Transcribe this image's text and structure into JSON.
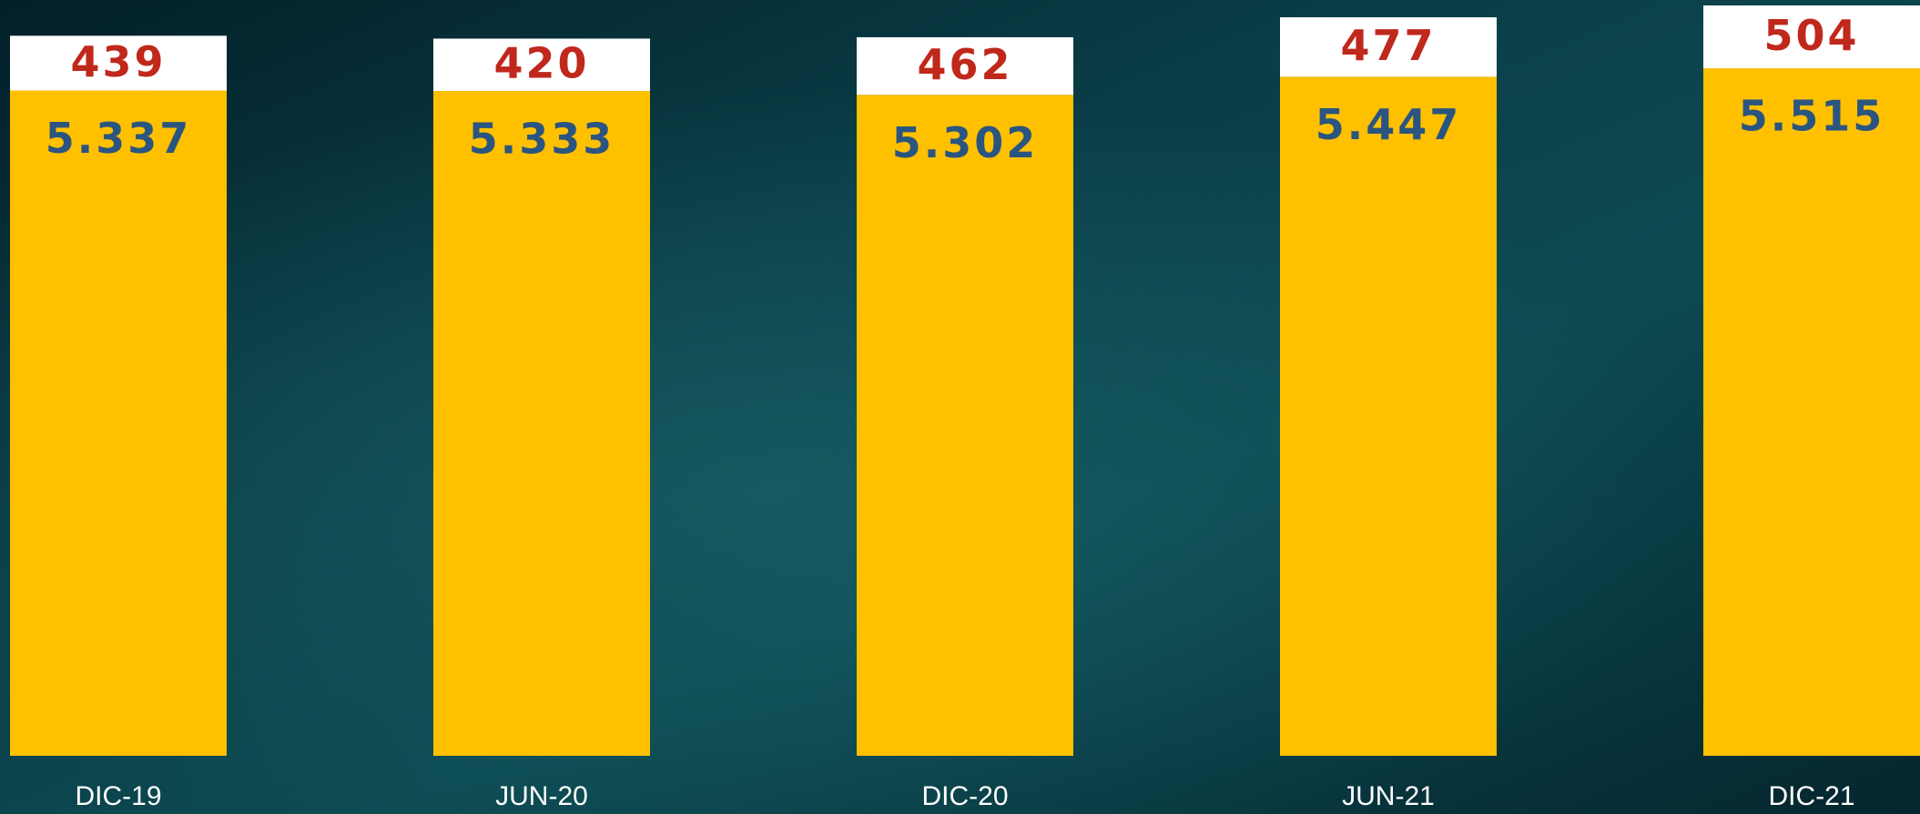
{
  "chart_data": {
    "type": "stacked-bar",
    "categories": [
      "DIC-19",
      "JUN-20",
      "DIC-20",
      "JUN-21",
      "DIC-21"
    ],
    "series": [
      {
        "color": "#ffc000",
        "values": [
          5337,
          5333,
          5302,
          5447,
          5515
        ],
        "value_labels": [
          "5.337",
          "5.333",
          "5.302",
          "5.447",
          "5.515"
        ],
        "label_color": "#2a5580"
      },
      {
        "color": "#ffffff",
        "values": [
          439,
          420,
          462,
          477,
          504
        ],
        "label_color": "#c0281c"
      }
    ]
  }
}
